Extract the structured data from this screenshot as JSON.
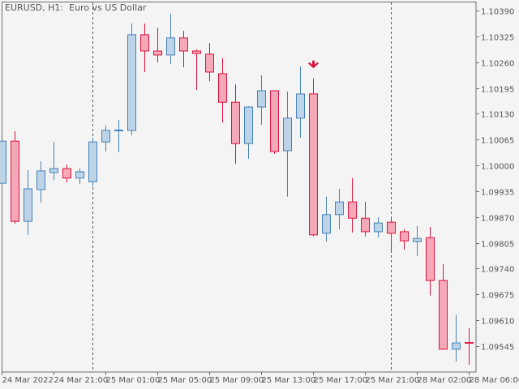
{
  "window": {
    "title": "EURUSD, H1:  Euro vs US Dollar"
  },
  "colors": {
    "background": "#f4f4f4",
    "bull_fill": "#bdd4e8",
    "bull_stroke": "#4682b4",
    "bear_fill": "#f5a8b8",
    "bear_stroke": "#dc143c",
    "axis": "#6e6e6e",
    "signal_arrow": "#dc143c"
  },
  "chart_data": {
    "type": "candlestick",
    "title": "EURUSD, H1:  Euro vs US Dollar",
    "symbol": "EURUSD",
    "timeframe": "H1",
    "ylim": [
      1.0949,
      1.1041
    ],
    "yticks": [
      "1.10390",
      "1.10325",
      "1.10260",
      "1.10195",
      "1.10130",
      "1.10065",
      "1.10000",
      "1.09935",
      "1.09870",
      "1.09805",
      "1.09740",
      "1.09675",
      "1.09610",
      "1.09545"
    ],
    "xticks": [
      {
        "index": 0,
        "label": "24 Mar 2022"
      },
      {
        "index": 4,
        "label": "24 Mar 21:00"
      },
      {
        "index": 8,
        "label": "25 Mar 01:00"
      },
      {
        "index": 12,
        "label": "25 Mar 05:00"
      },
      {
        "index": 16,
        "label": "25 Mar 09:00"
      },
      {
        "index": 20,
        "label": "25 Mar 13:00"
      },
      {
        "index": 24,
        "label": "25 Mar 17:00"
      },
      {
        "index": 28,
        "label": "25 Mar 21:00"
      },
      {
        "index": 32,
        "label": "28 Mar 02:00"
      },
      {
        "index": 36,
        "label": "28 Mar 06:00"
      }
    ],
    "day_separators": [
      7,
      30
    ],
    "signals": [
      {
        "index": 24,
        "type": "sell-arrow"
      }
    ],
    "grid": false,
    "ohlc": [
      [
        1.09955,
        1.10061,
        1.09955,
        1.10061
      ],
      [
        1.10061,
        1.10086,
        1.09853,
        1.09859
      ],
      [
        1.09859,
        1.09988,
        1.09825,
        1.09941
      ],
      [
        1.09939,
        1.1001,
        1.09906,
        1.09986
      ],
      [
        1.09982,
        1.10059,
        1.09963,
        1.09992
      ],
      [
        1.09992,
        1.10002,
        1.09957,
        1.09968
      ],
      [
        1.09968,
        1.09992,
        1.09953,
        1.09984
      ],
      [
        1.09959,
        1.1007,
        1.09947,
        1.10059
      ],
      [
        1.10059,
        1.101,
        1.10035,
        1.10088
      ],
      [
        1.10088,
        1.10114,
        1.10033,
        1.10088
      ],
      [
        1.10088,
        1.10357,
        1.10076,
        1.10329
      ],
      [
        1.10329,
        1.10357,
        1.10235,
        1.10288
      ],
      [
        1.10288,
        1.10347,
        1.10259,
        1.10278
      ],
      [
        1.10278,
        1.10382,
        1.10255,
        1.10321
      ],
      [
        1.10321,
        1.10339,
        1.10247,
        1.10288
      ],
      [
        1.10288,
        1.10292,
        1.1019,
        1.10282
      ],
      [
        1.1028,
        1.10308,
        1.10212,
        1.10235
      ],
      [
        1.10231,
        1.1027,
        1.10108,
        1.10159
      ],
      [
        1.10159,
        1.10204,
        1.10004,
        1.10055
      ],
      [
        1.10055,
        1.10149,
        1.10017,
        1.10147
      ],
      [
        1.10147,
        1.10227,
        1.10102,
        1.10188
      ],
      [
        1.10188,
        1.10188,
        1.10029,
        1.10035
      ],
      [
        1.10037,
        1.10186,
        1.09921,
        1.10119
      ],
      [
        1.10119,
        1.10249,
        1.1007,
        1.1018
      ],
      [
        1.1018,
        1.10219,
        1.09821,
        1.09825
      ],
      [
        1.09829,
        1.09921,
        1.09808,
        1.09876
      ],
      [
        1.09876,
        1.09941,
        1.09839,
        1.09908
      ],
      [
        1.09908,
        1.09968,
        1.09831,
        1.09867
      ],
      [
        1.09867,
        1.09908,
        1.09821,
        1.09833
      ],
      [
        1.09833,
        1.0987,
        1.09818,
        1.09855
      ],
      [
        1.09857,
        1.09867,
        1.09784,
        1.09829
      ],
      [
        1.09833,
        1.09839,
        1.09788,
        1.0981
      ],
      [
        1.09808,
        1.09847,
        1.09772,
        1.09816
      ],
      [
        1.09818,
        1.09845,
        1.09672,
        1.0971
      ],
      [
        1.0971,
        1.09751,
        1.09537,
        1.09537
      ],
      [
        1.09537,
        1.09623,
        1.09506,
        1.09553
      ],
      [
        1.09553,
        1.0959,
        1.09498,
        1.09553
      ]
    ]
  }
}
